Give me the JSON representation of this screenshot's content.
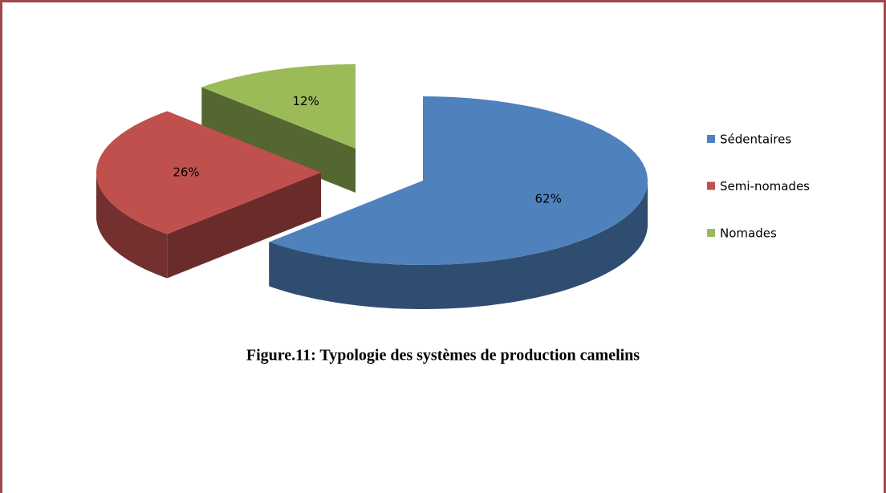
{
  "chart_data": {
    "type": "pie3d",
    "title": "Figure.11: Typologie des systèmes de production camelins",
    "categories": [
      "Sédentaires",
      "Semi-nomades",
      "Nomades"
    ],
    "values": [
      62,
      26,
      12
    ],
    "value_labels": [
      "62%",
      "26%",
      "12%"
    ],
    "colors": [
      "#4f81bd",
      "#c0504d",
      "#9bbb59"
    ],
    "legend": "right"
  }
}
